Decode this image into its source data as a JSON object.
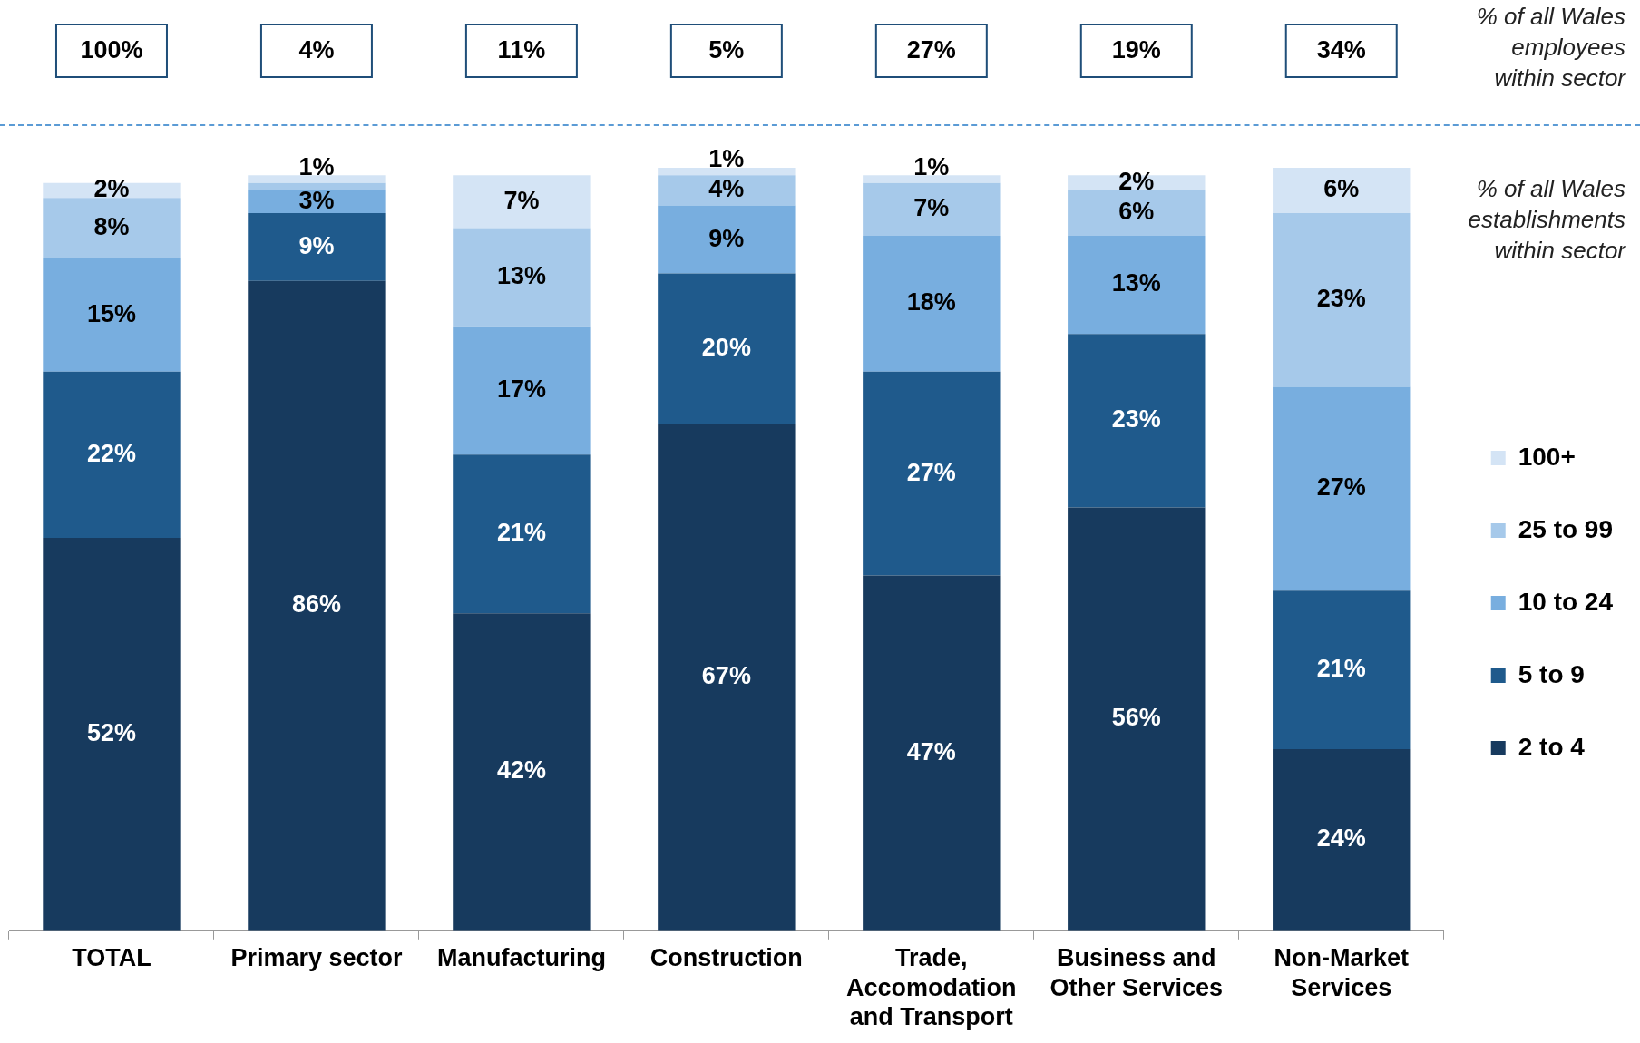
{
  "chart_data": {
    "type": "bar",
    "stacked": true,
    "categories": [
      "TOTAL",
      "Primary sector",
      "Manufacturing",
      "Construction",
      "Trade, Accomodation and Transport",
      "Business and Other Services",
      "Non-Market Services"
    ],
    "series": [
      {
        "name": "2 to 4",
        "color": "#173a5e",
        "values": [
          52,
          86,
          42,
          67,
          47,
          56,
          24
        ],
        "value_labels": [
          "52%",
          "86%",
          "42%",
          "67%",
          "47%",
          "56%",
          "24%"
        ]
      },
      {
        "name": "5 to 9",
        "color": "#1f5a8c",
        "values": [
          22,
          9,
          21,
          20,
          27,
          23,
          21
        ],
        "value_labels": [
          "22%",
          "9%",
          "21%",
          "20%",
          "27%",
          "23%",
          "21%"
        ]
      },
      {
        "name": "10 to 24",
        "color": "#78aedf",
        "values": [
          15,
          3,
          17,
          9,
          18,
          13,
          27
        ],
        "value_labels": [
          "15%",
          "3%",
          "17%",
          "9%",
          "18%",
          "13%",
          "27%"
        ]
      },
      {
        "name": "25 to 99",
        "color": "#a6c9ea",
        "values": [
          8,
          1,
          13,
          4,
          7,
          6,
          23
        ],
        "value_labels": [
          "8%",
          null,
          "13%",
          "4%",
          "7%",
          "6%",
          "23%"
        ]
      },
      {
        "name": "100+",
        "color": "#d4e4f5",
        "values": [
          2,
          1,
          7,
          1,
          1,
          2,
          6
        ],
        "value_labels": [
          "2%",
          "1%",
          "7%",
          "1%",
          "1%",
          "2%",
          "6%"
        ]
      }
    ],
    "ylim": [
      0,
      101
    ],
    "tick_labels": "x",
    "grid": false,
    "legend": "right",
    "annotations": [
      "100%",
      "4%",
      "11%",
      "5%",
      "27%",
      "19%",
      "34%",
      "% of all Wales employees within sector",
      "% of all Wales establishments within sector"
    ]
  }
}
